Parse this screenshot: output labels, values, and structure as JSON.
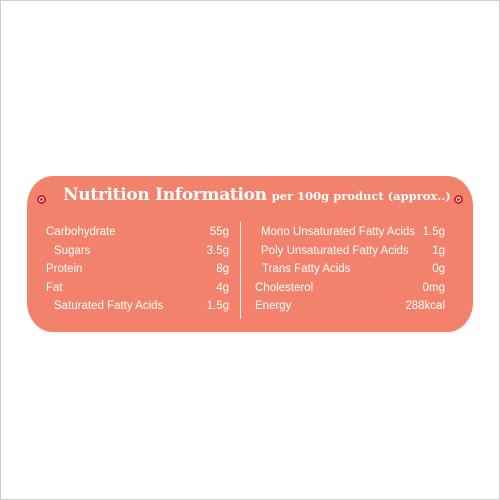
{
  "header": {
    "title": "Nutrition Information",
    "subtitle": "per 100g product (approx..)"
  },
  "left_rows": [
    {
      "name": "Carbohydrate",
      "value": "55g"
    },
    {
      "name": "Sugars",
      "value": "3.5g"
    },
    {
      "name": "Protein",
      "value": "8g"
    },
    {
      "name": "Fat",
      "value": "4g"
    },
    {
      "name": "Saturated Fatty Acids",
      "value": "1.5g"
    }
  ],
  "right_rows": [
    {
      "name": "Mono Unsaturated Fatty Acids",
      "value": "1.5g"
    },
    {
      "name": "Poly Unsaturated Fatty Acids",
      "value": "1g"
    },
    {
      "name": "Trans Fatty Acids",
      "value": "0g"
    },
    {
      "name": "Cholesterol",
      "value": "0mg"
    },
    {
      "name": "Energy",
      "value": "288kcal"
    }
  ],
  "colors": {
    "label_background": "#f2826b",
    "text": "#ffffff",
    "hole_ring": "#d0242a"
  }
}
